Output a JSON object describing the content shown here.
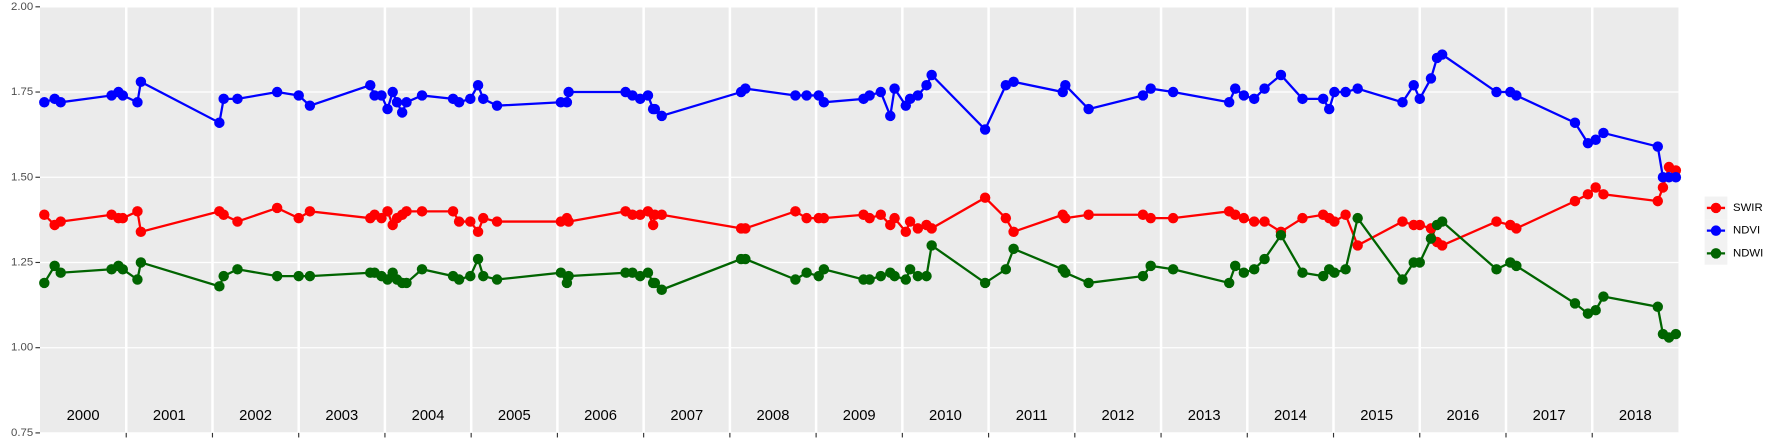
{
  "chart_data": {
    "type": "line",
    "xlim": [
      2000,
      2019
    ],
    "xticks": [
      2001,
      2002,
      2003,
      2004,
      2005,
      2006,
      2007,
      2008,
      2009,
      2010,
      2011,
      2012,
      2013,
      2014,
      2015,
      2016,
      2017,
      2018
    ],
    "year_labels": [
      "2000",
      "2001",
      "2002",
      "2003",
      "2004",
      "2005",
      "2006",
      "2007",
      "2008",
      "2009",
      "2010",
      "2011",
      "2012",
      "2013",
      "2014",
      "2015",
      "2016",
      "2017",
      "2018"
    ],
    "ylim": [
      0.75,
      2.0
    ],
    "yticks": [
      {
        "value": 0.75,
        "label": "0.75"
      },
      {
        "value": 1.0,
        "label": "1.00"
      },
      {
        "value": 1.25,
        "label": "1.25"
      },
      {
        "value": 1.5,
        "label": "1.50"
      },
      {
        "value": 1.75,
        "label": "1.75"
      },
      {
        "value": 2.0,
        "label": "2.00"
      }
    ],
    "grid": true,
    "legend": "right",
    "x": [
      2000.05,
      2000.17,
      2000.24,
      2000.83,
      2000.91,
      2000.96,
      2001.13,
      2001.17,
      2002.08,
      2002.13,
      2002.29,
      2002.75,
      2003.0,
      2003.13,
      2003.83,
      2003.88,
      2003.96,
      2004.03,
      2004.09,
      2004.14,
      2004.2,
      2004.25,
      2004.43,
      2004.79,
      2004.86,
      2004.99,
      2005.08,
      2005.14,
      2005.3,
      2006.04,
      2006.11,
      2006.13,
      2006.79,
      2006.87,
      2006.96,
      2007.05,
      2007.11,
      2007.13,
      2007.21,
      2008.13,
      2008.18,
      2008.76,
      2008.89,
      2009.03,
      2009.09,
      2009.55,
      2009.62,
      2009.75,
      2009.86,
      2009.91,
      2010.04,
      2010.09,
      2010.18,
      2010.28,
      2010.34,
      2010.96,
      2011.2,
      2011.29,
      2011.86,
      2011.89,
      2012.16,
      2012.79,
      2012.88,
      2013.14,
      2013.79,
      2013.86,
      2013.96,
      2014.08,
      2014.2,
      2014.39,
      2014.64,
      2014.88,
      2014.95,
      2015.01,
      2015.14,
      2015.28,
      2015.8,
      2015.93,
      2016.0,
      2016.13,
      2016.2,
      2016.26,
      2016.89,
      2017.05,
      2017.12,
      2017.8,
      2017.95,
      2018.04,
      2018.13,
      2018.76,
      2018.82,
      2018.89,
      2018.97
    ],
    "series": [
      {
        "name": "SWIR",
        "color": "#ff0000",
        "values": [
          1.39,
          1.36,
          1.37,
          1.39,
          1.38,
          1.38,
          1.4,
          1.34,
          1.4,
          1.39,
          1.37,
          1.41,
          1.38,
          1.4,
          1.38,
          1.39,
          1.38,
          1.4,
          1.36,
          1.38,
          1.39,
          1.4,
          1.4,
          1.4,
          1.37,
          1.37,
          1.34,
          1.38,
          1.37,
          1.37,
          1.38,
          1.37,
          1.4,
          1.39,
          1.39,
          1.4,
          1.36,
          1.39,
          1.39,
          1.35,
          1.35,
          1.4,
          1.38,
          1.38,
          1.38,
          1.39,
          1.38,
          1.39,
          1.36,
          1.38,
          1.34,
          1.37,
          1.35,
          1.36,
          1.35,
          1.44,
          1.38,
          1.34,
          1.39,
          1.38,
          1.39,
          1.39,
          1.38,
          1.38,
          1.4,
          1.39,
          1.38,
          1.37,
          1.37,
          1.34,
          1.38,
          1.39,
          1.38,
          1.37,
          1.39,
          1.3,
          1.37,
          1.36,
          1.36,
          1.35,
          1.31,
          1.3,
          1.37,
          1.36,
          1.35,
          1.43,
          1.45,
          1.47,
          1.45,
          1.43,
          1.47,
          1.53,
          1.52
        ]
      },
      {
        "name": "NDVI",
        "color": "#0000ff",
        "values": [
          1.72,
          1.73,
          1.72,
          1.74,
          1.75,
          1.74,
          1.72,
          1.78,
          1.66,
          1.73,
          1.73,
          1.75,
          1.74,
          1.71,
          1.77,
          1.74,
          1.74,
          1.7,
          1.75,
          1.72,
          1.69,
          1.72,
          1.74,
          1.73,
          1.72,
          1.73,
          1.77,
          1.73,
          1.71,
          1.72,
          1.72,
          1.75,
          1.75,
          1.74,
          1.73,
          1.74,
          1.7,
          1.7,
          1.68,
          1.75,
          1.76,
          1.74,
          1.74,
          1.74,
          1.72,
          1.73,
          1.74,
          1.75,
          1.68,
          1.76,
          1.71,
          1.73,
          1.74,
          1.77,
          1.8,
          1.64,
          1.77,
          1.78,
          1.75,
          1.77,
          1.7,
          1.74,
          1.76,
          1.75,
          1.72,
          1.76,
          1.74,
          1.73,
          1.76,
          1.8,
          1.73,
          1.73,
          1.7,
          1.75,
          1.75,
          1.76,
          1.72,
          1.77,
          1.73,
          1.79,
          1.85,
          1.86,
          1.75,
          1.75,
          1.74,
          1.66,
          1.6,
          1.61,
          1.63,
          1.59,
          1.5,
          1.5,
          1.5
        ]
      },
      {
        "name": "NDWI",
        "color": "#006400",
        "values": [
          1.19,
          1.24,
          1.22,
          1.23,
          1.24,
          1.23,
          1.2,
          1.25,
          1.18,
          1.21,
          1.23,
          1.21,
          1.21,
          1.21,
          1.22,
          1.22,
          1.21,
          1.2,
          1.22,
          1.2,
          1.19,
          1.19,
          1.23,
          1.21,
          1.2,
          1.21,
          1.26,
          1.21,
          1.2,
          1.22,
          1.19,
          1.21,
          1.22,
          1.22,
          1.21,
          1.22,
          1.19,
          1.19,
          1.17,
          1.26,
          1.26,
          1.2,
          1.22,
          1.21,
          1.23,
          1.2,
          1.2,
          1.21,
          1.22,
          1.21,
          1.2,
          1.23,
          1.21,
          1.21,
          1.3,
          1.19,
          1.23,
          1.29,
          1.23,
          1.22,
          1.19,
          1.21,
          1.24,
          1.23,
          1.19,
          1.24,
          1.22,
          1.23,
          1.26,
          1.33,
          1.22,
          1.21,
          1.23,
          1.22,
          1.23,
          1.38,
          1.2,
          1.25,
          1.25,
          1.32,
          1.36,
          1.37,
          1.23,
          1.25,
          1.24,
          1.13,
          1.1,
          1.11,
          1.15,
          1.12,
          1.04,
          1.03,
          1.04
        ]
      }
    ]
  }
}
